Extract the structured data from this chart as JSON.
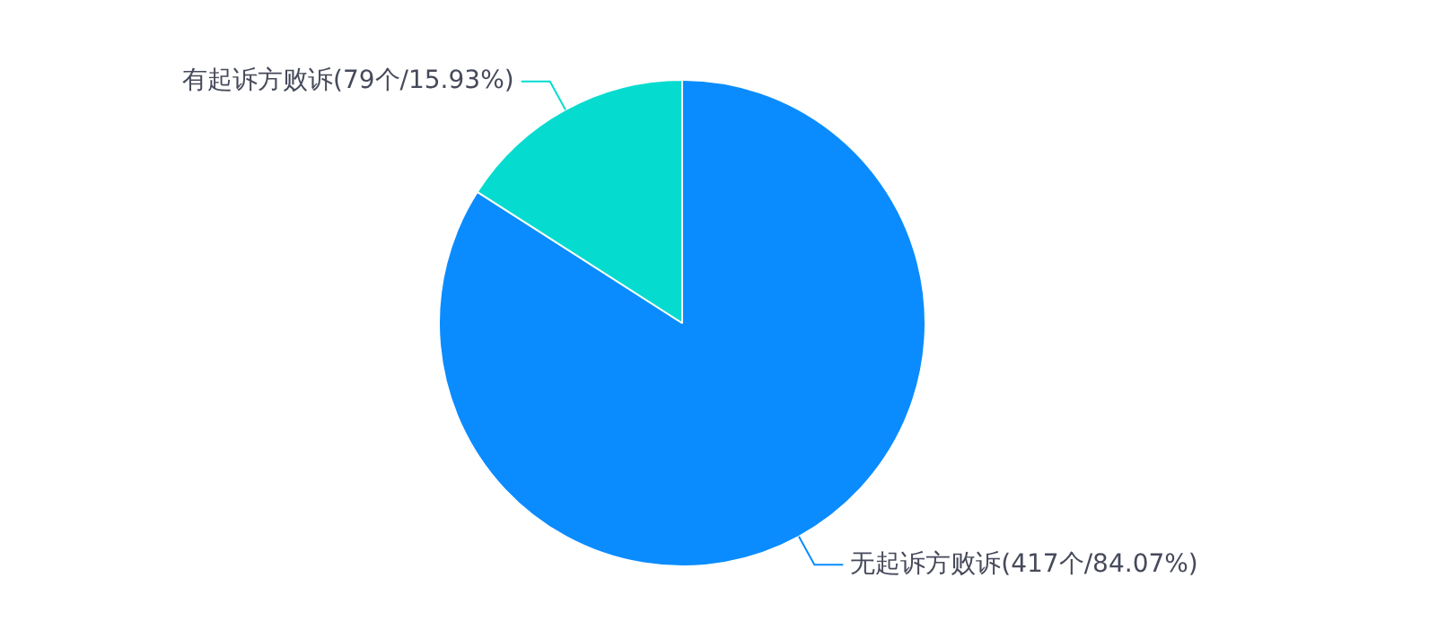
{
  "chart_data": {
    "type": "pie",
    "categories": [
      "无起诉方败诉(417个/84.07%)",
      "有起诉方败诉(79个/15.93%)"
    ],
    "values": [
      84.07,
      15.93
    ],
    "colors": [
      "#0a8cff",
      "#05dccf"
    ],
    "legend": false
  }
}
